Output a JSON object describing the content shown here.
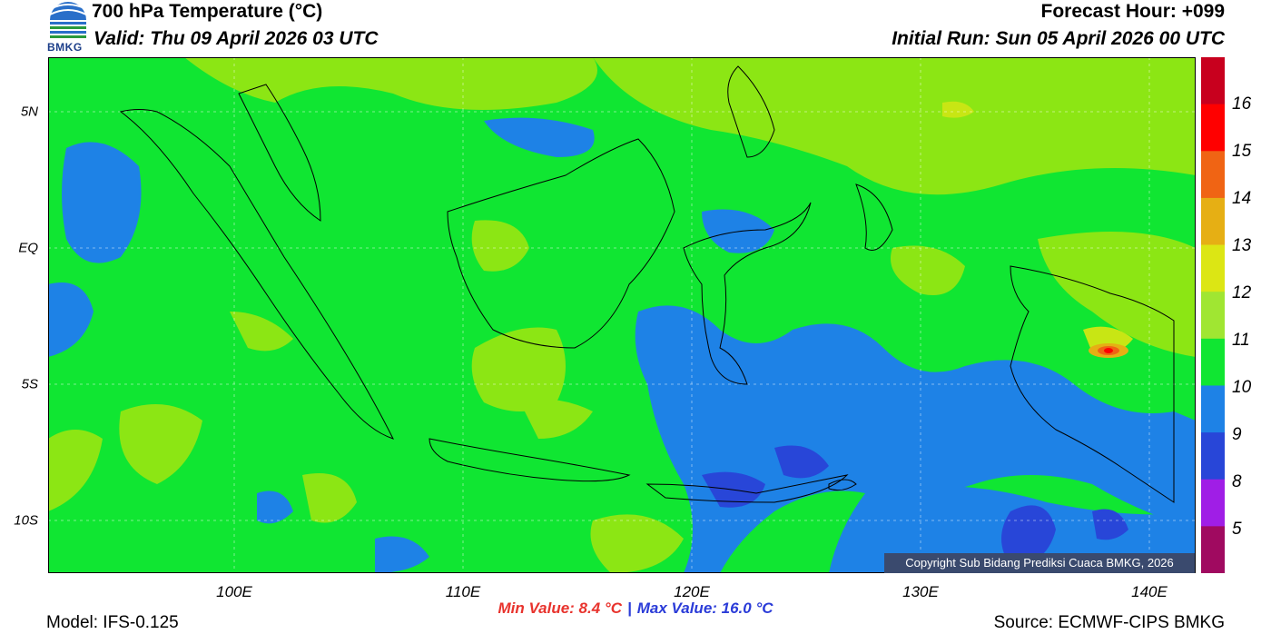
{
  "header": {
    "title": "700 hPa Temperature (°C)",
    "valid": "Valid: Thu 09 April 2026 03 UTC",
    "forecast_hour": "Forecast Hour: +099",
    "initial_run": "Initial Run: Sun 05 April 2026 00 UTC",
    "logo_text": "BMKG"
  },
  "map": {
    "lon_labels": [
      "100E",
      "110E",
      "120E",
      "130E",
      "140E"
    ],
    "lat_labels": [
      "5N",
      "EQ",
      "5S",
      "10S"
    ],
    "colors": {
      "level_10_11": "#10e632",
      "level_11_12": "#8ce614",
      "level_12_13": "#c8e614",
      "level_9_10": "#1e82e6",
      "level_8_9": "#2846d8"
    },
    "copyright": "Copyright Sub Bidang Prediksi Cuaca BMKG, 2026"
  },
  "colorbar": {
    "labels": [
      "16",
      "15",
      "14",
      "13",
      "12",
      "11",
      "10",
      "9",
      "8",
      "5"
    ],
    "colors": [
      "#c8001e",
      "#ff0000",
      "#f06414",
      "#e6af14",
      "#dce614",
      "#a0e632",
      "#10e632",
      "#1e82e6",
      "#2846d8",
      "#a01ee6",
      "#a00a60"
    ]
  },
  "footer": {
    "model": "Model: IFS-0.125",
    "min_value": "Min Value: 8.4 °C",
    "separator": "|",
    "max_value": "Max Value: 16.0 °C",
    "source": "Source: ECMWF-CIPS BMKG"
  }
}
